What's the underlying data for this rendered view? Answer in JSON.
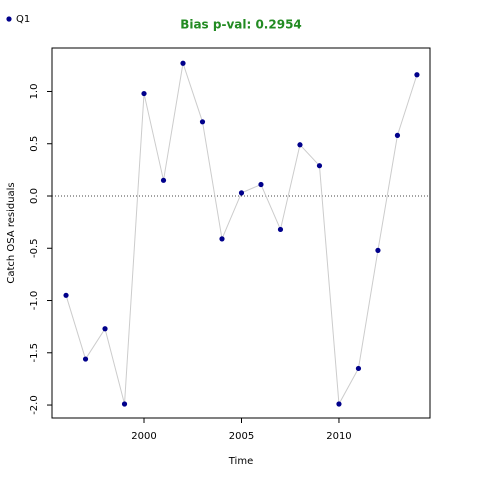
{
  "chart_data": {
    "type": "line",
    "title": "Bias p-val: 0.2954",
    "title_color": "#228b22",
    "x_label": "Time",
    "y_label": "Catch OSA residuals",
    "x": [
      1996,
      1997,
      1998,
      1999,
      2000,
      2001,
      2002,
      2003,
      2004,
      2005,
      2006,
      2007,
      2008,
      2009,
      2010,
      2011,
      2012,
      2013,
      2014
    ],
    "series": [
      {
        "name": "Q1",
        "color": "#00008b",
        "line_color": "#cccccc",
        "values": [
          -0.95,
          -1.56,
          -1.27,
          -1.99,
          0.98,
          0.15,
          1.27,
          0.71,
          -0.41,
          0.03,
          0.11,
          -0.32,
          0.49,
          0.29,
          -1.99,
          -1.65,
          -0.52,
          0.58,
          1.16
        ]
      }
    ],
    "xlim": [
      1995.28,
      2014.67
    ],
    "xticks": [
      2000,
      2005,
      2010
    ],
    "ylim": [
      -2.124,
      1.416
    ],
    "yticks": [
      {
        "value": -2,
        "label": "-2.0"
      },
      -1.5,
      {
        "value": -1,
        "label": "-1.0"
      },
      -0.5,
      {
        "value": 0,
        "label": "0.0"
      },
      0.5,
      {
        "value": 1,
        "label": "1.0"
      }
    ],
    "hline": 0,
    "legend": "top-left"
  }
}
